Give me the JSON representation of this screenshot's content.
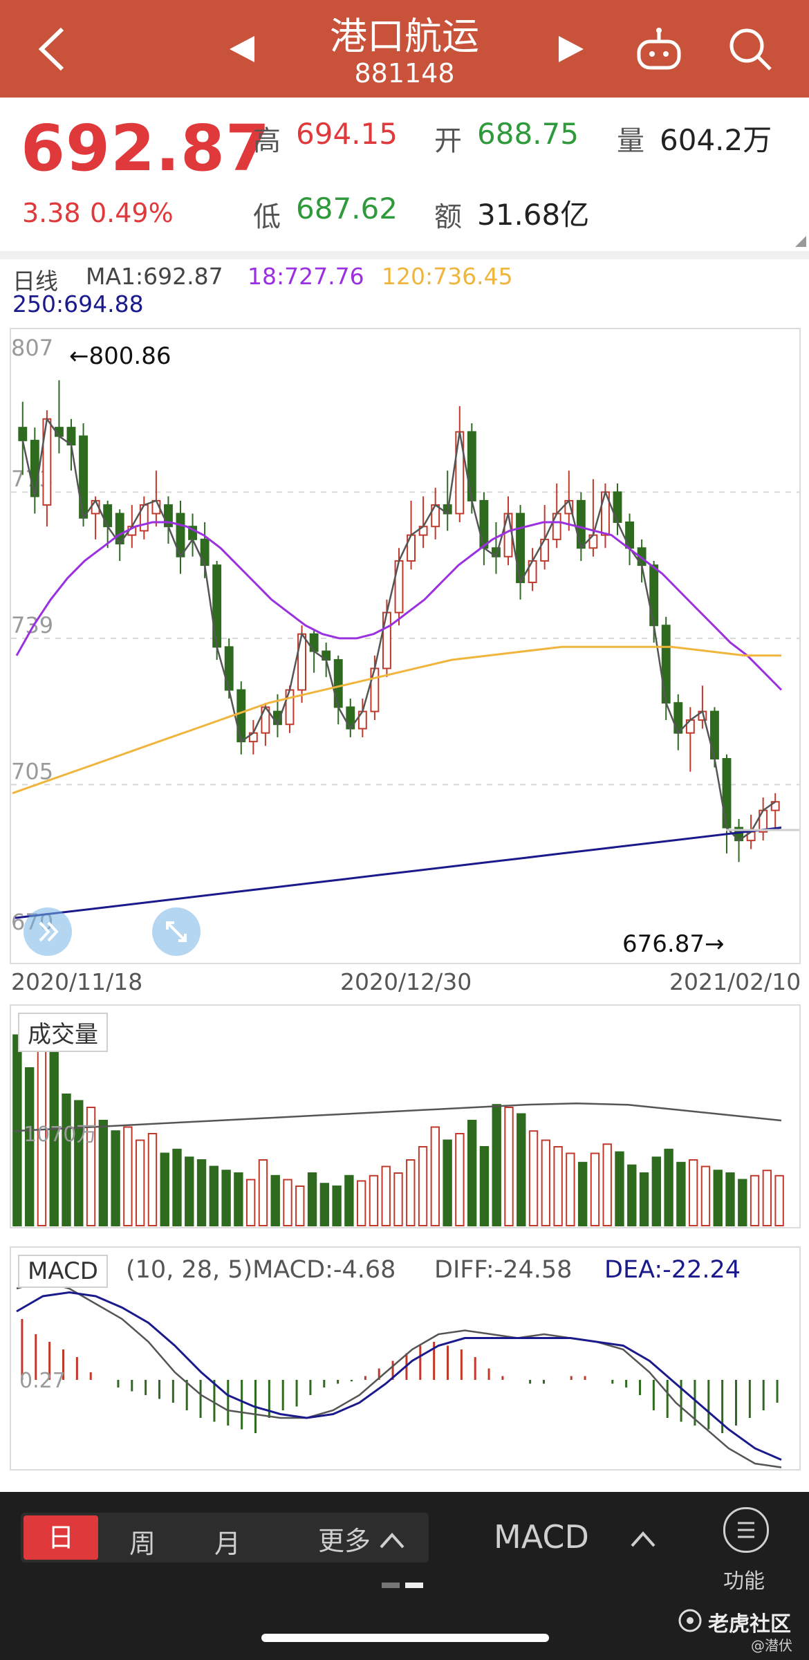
{
  "header": {
    "title": "港口航运",
    "code": "881148",
    "back_icon": "chevron-left-icon",
    "prev_icon": "triangle-left-icon",
    "next_icon": "triangle-right-icon",
    "robot_icon": "robot-icon",
    "search_icon": "search-icon"
  },
  "quote": {
    "price": "692.87",
    "change": "3.38",
    "change_pct": "0.49%",
    "high_label": "高",
    "high": "694.15",
    "open_label": "开",
    "open": "688.75",
    "volume_label": "量",
    "volume": "604.2万",
    "low_label": "低",
    "low": "687.62",
    "amount_label": "额",
    "amount": "31.68亿"
  },
  "ma_legend": {
    "period": "日线",
    "ma1": "MA1:692.87",
    "ma18": "18:727.76",
    "ma120": "120:736.45",
    "ma250": "250:694.88"
  },
  "colors": {
    "up": "#c0392b",
    "down": "#2e6b1f",
    "ma18": "#9b30e0",
    "ma120": "#f0b53c",
    "ma250": "#1a1a8c"
  },
  "kline": {
    "annotation_high": "←800.86",
    "annotation_low": "676.87→",
    "y_labels": [
      "807",
      "773",
      "739",
      "705",
      "670"
    ],
    "dates": [
      "2020/11/18",
      "2020/12/30",
      "2021/02/10"
    ]
  },
  "chart_data": [
    {
      "type": "line",
      "name": "candlestick",
      "ylim": [
        670,
        807
      ],
      "y_ticks": [
        807,
        773,
        739,
        705,
        670
      ],
      "x_tick_labels": [
        "2020/11/18",
        "2020/12/30",
        "2021/02/10"
      ],
      "annotations": [
        "←800.86",
        "676.87→"
      ],
      "candles": [
        [
          788,
          785,
          794,
          777
        ],
        [
          785,
          772,
          788,
          768
        ],
        [
          770,
          790,
          792,
          765
        ],
        [
          788,
          786,
          799,
          782
        ],
        [
          788,
          784,
          790,
          778
        ],
        [
          786,
          767,
          789,
          765
        ],
        [
          768,
          771,
          772,
          762
        ],
        [
          770,
          765,
          771,
          760
        ],
        [
          768,
          761,
          769,
          757
        ],
        [
          763,
          765,
          770,
          760
        ],
        [
          764,
          770,
          772,
          762
        ],
        [
          768,
          771,
          778,
          765
        ],
        [
          770,
          765,
          772,
          761
        ],
        [
          768,
          758,
          771,
          754
        ],
        [
          765,
          762,
          768,
          758
        ],
        [
          762,
          756,
          766,
          753
        ],
        [
          756,
          737,
          757,
          734
        ],
        [
          737,
          727,
          739,
          725
        ],
        [
          727,
          715,
          729,
          712
        ],
        [
          715,
          717,
          720,
          712
        ],
        [
          717,
          723,
          724,
          714
        ],
        [
          722,
          719,
          726,
          716
        ],
        [
          719,
          727,
          728,
          717
        ],
        [
          727,
          740,
          742,
          724
        ],
        [
          740,
          736,
          741,
          731
        ],
        [
          736,
          734,
          738,
          730
        ],
        [
          734,
          723,
          735,
          719
        ],
        [
          723,
          718,
          725,
          716
        ],
        [
          718,
          722,
          725,
          716
        ],
        [
          722,
          732,
          735,
          720
        ],
        [
          732,
          745,
          748,
          730
        ],
        [
          745,
          757,
          760,
          742
        ],
        [
          757,
          763,
          771,
          755
        ],
        [
          763,
          765,
          772,
          760
        ],
        [
          765,
          770,
          774,
          762
        ],
        [
          770,
          768,
          778,
          764
        ],
        [
          768,
          787,
          793,
          766
        ],
        [
          787,
          771,
          789,
          768
        ],
        [
          771,
          760,
          773,
          756
        ],
        [
          760,
          758,
          766,
          754
        ],
        [
          758,
          768,
          772,
          756
        ],
        [
          768,
          752,
          770,
          748
        ],
        [
          752,
          757,
          760,
          750
        ],
        [
          757,
          762,
          770,
          755
        ],
        [
          762,
          768,
          775,
          760
        ],
        [
          768,
          771,
          778,
          764
        ],
        [
          771,
          760,
          773,
          757
        ],
        [
          760,
          763,
          776,
          758
        ],
        [
          763,
          773,
          775,
          760
        ],
        [
          773,
          766,
          775,
          763
        ],
        [
          766,
          760,
          768,
          756
        ],
        [
          760,
          756,
          762,
          752
        ],
        [
          756,
          742,
          757,
          738
        ],
        [
          742,
          724,
          744,
          720
        ],
        [
          724,
          717,
          726,
          713
        ],
        [
          717,
          720,
          723,
          708
        ],
        [
          720,
          722,
          728,
          718
        ],
        [
          722,
          711,
          723,
          709
        ],
        [
          711,
          695,
          712,
          689
        ],
        [
          695,
          692,
          697,
          687
        ],
        [
          692,
          694,
          698,
          690
        ],
        [
          694,
          699,
          702,
          692
        ],
        [
          699,
          701,
          703,
          695
        ]
      ],
      "ma18_values": [
        735,
        742,
        748,
        753,
        757,
        760,
        763,
        765,
        766,
        766,
        765,
        763,
        760,
        756,
        752,
        748,
        745,
        742,
        740,
        739,
        739,
        740,
        742,
        745,
        748,
        752,
        756,
        759,
        762,
        764,
        765,
        766,
        766,
        765,
        764,
        763,
        760,
        757,
        754,
        750,
        746,
        742,
        738,
        735,
        731,
        727
      ],
      "ma120_values": [
        703,
        706,
        709,
        712,
        715,
        718,
        721,
        724,
        726,
        728,
        730,
        732,
        734,
        735,
        736,
        737,
        737,
        737,
        737,
        736,
        735,
        735
      ],
      "ma250_values": [
        674,
        675,
        676,
        677,
        678,
        679,
        680,
        681,
        682,
        683,
        684,
        685,
        686,
        687,
        688,
        689,
        690,
        691,
        692,
        693,
        694,
        695
      ]
    },
    {
      "type": "bar",
      "name": "成交量",
      "label": "1070万",
      "values": [
        1.45,
        1.2,
        1.35,
        1.39,
        1.0,
        0.95,
        0.9,
        0.8,
        0.72,
        0.75,
        0.65,
        0.7,
        0.55,
        0.58,
        0.52,
        0.5,
        0.45,
        0.42,
        0.4,
        0.35,
        0.5,
        0.38,
        0.35,
        0.3,
        0.4,
        0.32,
        0.3,
        0.38,
        0.34,
        0.38,
        0.45,
        0.4,
        0.5,
        0.6,
        0.75,
        0.65,
        0.7,
        0.8,
        0.6,
        0.92,
        0.9,
        0.85,
        0.72,
        0.65,
        0.6,
        0.55,
        0.48,
        0.55,
        0.62,
        0.56,
        0.46,
        0.4,
        0.52,
        0.58,
        0.48,
        0.5,
        0.45,
        0.42,
        0.4,
        0.35,
        0.38,
        0.42,
        0.38
      ],
      "avg_values": [
        0.72,
        0.74,
        0.76,
        0.78,
        0.8,
        0.82,
        0.84,
        0.86,
        0.88,
        0.9,
        0.92,
        0.93,
        0.92,
        0.88,
        0.84,
        0.8
      ]
    },
    {
      "type": "line",
      "name": "MACD",
      "params": "(10, 28, 5)",
      "macd_label": "MACD:-4.68",
      "diff_label": "DIFF:-24.58",
      "dea_label": "DEA:-22.24",
      "zero_label": "0.27",
      "macd_hist": [
        0.8,
        0.6,
        0.5,
        0.4,
        0.3,
        0.1,
        0.0,
        -0.1,
        -0.15,
        -0.2,
        -0.25,
        -0.3,
        -0.4,
        -0.5,
        -0.55,
        -0.6,
        -0.65,
        -0.7,
        -0.5,
        -0.4,
        -0.35,
        -0.2,
        -0.1,
        -0.05,
        -0.02,
        0.05,
        0.15,
        0.25,
        0.35,
        0.45,
        0.5,
        0.45,
        0.4,
        0.3,
        0.15,
        0.05,
        0.0,
        -0.05,
        -0.05,
        0.0,
        0.05,
        0.05,
        0.0,
        -0.05,
        -0.1,
        -0.2,
        -0.4,
        -0.5,
        -0.55,
        -0.6,
        -0.65,
        -0.7,
        -0.6,
        -0.5,
        -0.4,
        -0.3
      ],
      "diff_values": [
        1.2,
        1.3,
        1.2,
        1.0,
        0.8,
        0.5,
        0.1,
        -0.2,
        -0.4,
        -0.45,
        -0.5,
        -0.5,
        -0.4,
        -0.2,
        0.1,
        0.4,
        0.6,
        0.65,
        0.6,
        0.55,
        0.6,
        0.55,
        0.5,
        0.4,
        0.1,
        -0.3,
        -0.6,
        -0.9,
        -1.1,
        -1.15
      ],
      "dea_values": [
        0.9,
        1.1,
        1.15,
        1.1,
        0.95,
        0.75,
        0.45,
        0.1,
        -0.2,
        -0.35,
        -0.45,
        -0.5,
        -0.45,
        -0.3,
        -0.05,
        0.25,
        0.45,
        0.55,
        0.55,
        0.55,
        0.55,
        0.55,
        0.5,
        0.45,
        0.25,
        -0.05,
        -0.35,
        -0.65,
        -0.9,
        -1.05
      ]
    }
  ],
  "volume_panel": {
    "title": "成交量"
  },
  "macd_panel": {
    "title": "MACD"
  },
  "bottom": {
    "tab_day": "日",
    "tab_week": "周",
    "tab_month": "月",
    "tab_more": "更多",
    "indicator": "MACD",
    "func_label": "功能",
    "watermark": "老虎社区",
    "credit": "@潜伏"
  }
}
